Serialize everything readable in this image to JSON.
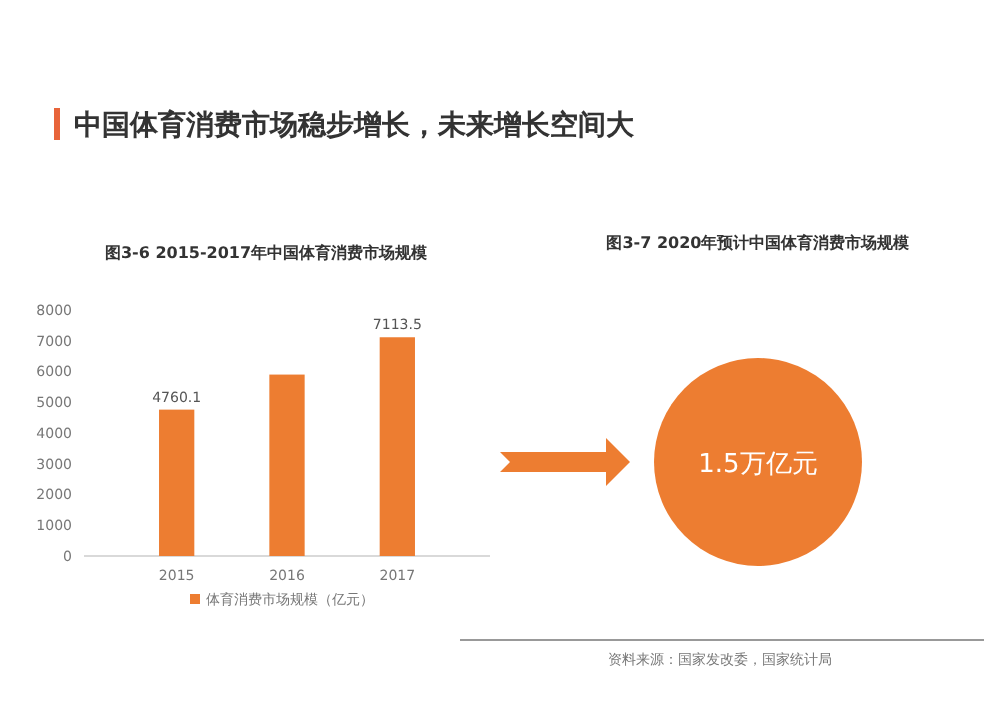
{
  "chart_data": [
    {
      "type": "bar",
      "title": "中国体育消费市场稳步增长，未来增长空间大",
      "subtitle": "图3-6 2015-2017年中国体育消费市场规模",
      "categories": [
        "2015",
        "2016",
        "2017"
      ],
      "series": [
        {
          "name": "体育消费市场规模（亿元）",
          "color": "#ed7d31",
          "values": [
            4760.1,
            5900,
            7113.5
          ],
          "value_labels": [
            "4760.1",
            null,
            "7113.5"
          ]
        }
      ],
      "ylim": [
        0,
        8000
      ],
      "yticks": [
        0,
        1000,
        2000,
        3000,
        4000,
        5000,
        6000,
        7000,
        8000
      ],
      "grid": false,
      "legend": "bottom"
    },
    {
      "type": "other",
      "title": "图3-7 2020年预计中国体育消费市场规模",
      "color": "#ed7d31",
      "annotations": [
        "1.5万亿元",
        "资料来源：国家发改委，国家统计局"
      ]
    }
  ]
}
